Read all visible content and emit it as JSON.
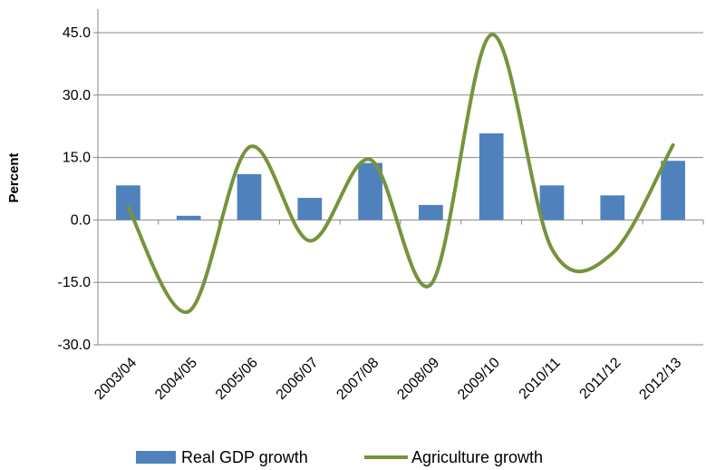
{
  "chart_data": {
    "type": "bar",
    "categories": [
      "2003/04",
      "2004/05",
      "2005/06",
      "2006/07",
      "2007/08",
      "2008/09",
      "2009/10",
      "2010/11",
      "2011/12",
      "2012/13"
    ],
    "series": [
      {
        "name": "Real GDP growth",
        "type": "bar",
        "color": "#4f81bd",
        "values": [
          8.3,
          1.0,
          11.0,
          5.3,
          13.7,
          3.6,
          20.8,
          8.3,
          5.9,
          14.2
        ]
      },
      {
        "name": "Agriculture growth",
        "type": "line",
        "smooth": true,
        "color": "#77933c",
        "values": [
          3.0,
          -22.0,
          17.5,
          -5.0,
          14.5,
          -15.5,
          44.5,
          -7.0,
          -8.0,
          18.0
        ]
      }
    ],
    "ylabel": "Percent",
    "xlabel": "",
    "title": "",
    "ylim": [
      -30,
      45
    ],
    "yticks": [
      -30,
      -15,
      0,
      15,
      30,
      45
    ],
    "ytick_labels": [
      "-30.0",
      "-15.0",
      "0.0",
      "15.0",
      "30.0",
      "45.0"
    ],
    "grid": true,
    "legend_position": "bottom"
  }
}
